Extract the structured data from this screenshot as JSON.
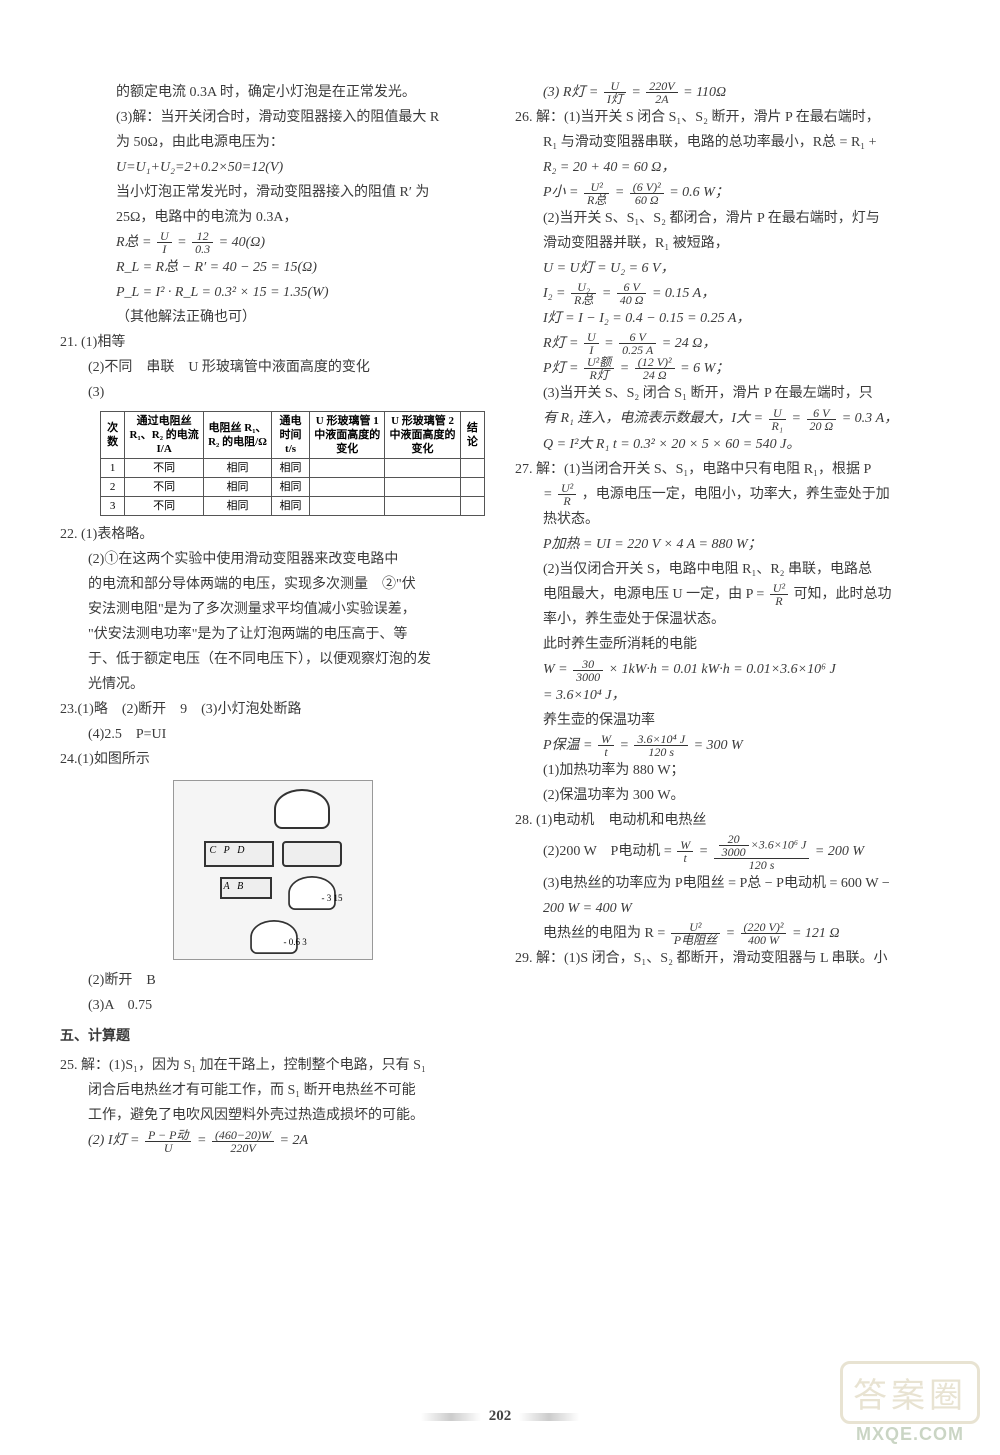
{
  "page_number": "202",
  "watermark": {
    "cn": "答案圈",
    "url": "MXQE.COM"
  },
  "left_col": {
    "l01": "的额定电流 0.3A 时，确定小灯泡是在正常发光。",
    "l02": "(3)解：当开关闭合时，滑动变阻器接入的阻值最大 R",
    "l03": "为 50Ω，由此电源电压为：",
    "l04": "U=U₁+U₂=2+0.2×50=12(V)",
    "l05": "当小灯泡正常发光时，滑动变阻器接入的阻值 R′ 为",
    "l06": "25Ω，电路中的电流为 0.3A，",
    "l07a": "R总 =",
    "l07_n": "U",
    "l07_d": "I",
    "l07b": " = ",
    "l07_n2": "12",
    "l07_d2": "0.3",
    "l07c": " = 40(Ω)",
    "l08": "R_L = R总 − R′ = 40 − 25 = 15(Ω)",
    "l09": "P_L = I² · R_L = 0.3² × 15 = 1.35(W)",
    "l10": "（其他解法正确也可）",
    "q21": "21. (1)相等",
    "q21b": "(2)不同　串联　U 形玻璃管中液面高度的变化",
    "q21c": "(3)",
    "table": {
      "headers": [
        "次数",
        "通过电阻丝 R₁、R₂ 的电流 I/A",
        "电阻丝 R₁、R₂ 的电阻/Ω",
        "通电时间 t/s",
        "U 形玻璃管 1 中液面高度的变化",
        "U 形玻璃管 2 中液面高度的变化",
        "结论"
      ],
      "rows": [
        [
          "1",
          "不同",
          "相同",
          "相同",
          "",
          "",
          ""
        ],
        [
          "2",
          "不同",
          "相同",
          "相同",
          "",
          "",
          ""
        ],
        [
          "3",
          "不同",
          "相同",
          "相同",
          "",
          "",
          ""
        ]
      ]
    },
    "q22a": "22. (1)表格略。",
    "q22b": "(2)①在这两个实验中使用滑动变阻器来改变电路中",
    "q22c": "的电流和部分导体两端的电压，实现多次测量　②\"伏",
    "q22d": "安法测电阻\"是为了多次测量求平均值减小实验误差，",
    "q22e": "\"伏安法测电功率\"是为了让灯泡两端的电压高于、等",
    "q22f": "于、低于额定电压（在不同电压下），以便观察灯泡的发",
    "q22g": "光情况。",
    "q23": "23.(1)略　(2)断开　9　(3)小灯泡处断路",
    "q23b": "(4)2.5　P=UI",
    "q24": "24.(1)如图所示",
    "q24b": "(2)断开　B",
    "q24c": "(3)A　0.75",
    "sec5": "五、计算题",
    "q25a": "25. 解：(1)S₁，因为 S₁ 加在干路上，控制整个电路，只有 S₁",
    "q25b": "闭合后电热丝才有可能工作，而 S₁ 断开电热丝不可能",
    "q25c": "工作，避免了电吹风因塑料外壳过热造成损坏的可能。",
    "q25d_a": "(2) I灯 = ",
    "q25d_n": "P − P动",
    "q25d_d": "U",
    "q25d_b": " = ",
    "q25d_n2": "(460−20)W",
    "q25d_d2": "220V",
    "q25d_c": " = 2A"
  },
  "right_col": {
    "r01a": "(3) R灯 = ",
    "r01_n": "U",
    "r01_d": "I灯",
    "r01b": " = ",
    "r01_n2": "220V",
    "r01_d2": "2A",
    "r01c": " = 110Ω",
    "q26a": "26. 解：(1)当开关 S 闭合 S₁、S₂ 断开，滑片 P 在最右端时，",
    "q26b": "R₁ 与滑动变阻器串联，电路的总功率最小，R总 = R₁ +",
    "q26c": "R₂ = 20 + 40 = 60 Ω，",
    "q26d_a": "P小 = ",
    "q26d_n": "U²",
    "q26d_d": "R总",
    "q26d_b": " = ",
    "q26d_n2": "(6 V)²",
    "q26d_d2": "60 Ω",
    "q26d_c": " = 0.6 W；",
    "q26e": "(2)当开关 S、S₁、S₂ 都闭合，滑片 P 在最右端时，灯与",
    "q26f": "滑动变阻器并联，R₁ 被短路，",
    "q26g": "U = U灯 = U₂ = 6 V，",
    "q26h_a": "I₂ = ",
    "q26h_n": "U₂",
    "q26h_d": "R总",
    "q26h_b": " = ",
    "q26h_n2": "6 V",
    "q26h_d2": "40 Ω",
    "q26h_c": " = 0.15 A，",
    "q26i": "I灯 = I − I₂ = 0.4 − 0.15 = 0.25 A，",
    "q26j_a": "R灯 = ",
    "q26j_n": "U",
    "q26j_d": "I",
    "q26j_b": " = ",
    "q26j_n2": "6 V",
    "q26j_d2": "0.25 A",
    "q26j_c": " = 24 Ω，",
    "q26k_a": "P灯 = ",
    "q26k_n": "U²额",
    "q26k_d": "R灯",
    "q26k_b": " = ",
    "q26k_n2": "(12 V)²",
    "q26k_d2": "24 Ω",
    "q26k_c": " = 6 W；",
    "q26l": "(3)当开关 S、S₂ 闭合 S₁ 断开，滑片 P 在最左端时，只",
    "q26m_a": "有 R₁ 连入，电流表示数最大，I大 = ",
    "q26m_n": "U",
    "q26m_d": "R₁",
    "q26m_b": " = ",
    "q26m_n2": "6 V",
    "q26m_d2": "20 Ω",
    "q26m_c": " = 0.3 A，",
    "q26n": "Q = I²大 R₁ t = 0.3² × 20 × 5 × 60 = 540 J。",
    "q27a": "27. 解：(1)当闭合开关 S、S₁，电路中只有电阻 R₁，根据 P",
    "q27b_a": "= ",
    "q27b_n": "U²",
    "q27b_d": "R",
    "q27b_b": "，电源电压一定，电阻小，功率大，养生壶处于加",
    "q27c": "热状态。",
    "q27d": "P加热 = UI = 220 V × 4 A = 880 W；",
    "q27e": "(2)当仅闭合开关 S，电路中电阻 R₁、R₂ 串联，电路总",
    "q27f_a": "电阻最大，电源电压 U 一定，由 P = ",
    "q27f_n": "U²",
    "q27f_d": "R",
    "q27f_b": " 可知，此时总功",
    "q27g": "率小，养生壶处于保温状态。",
    "q27h": "此时养生壶所消耗的电能",
    "q27i_a": "W = ",
    "q27i_n": "30",
    "q27i_d": "3000",
    "q27i_b": " × 1kW·h = 0.01 kW·h = 0.01×3.6×10⁶ J",
    "q27j": "= 3.6×10⁴ J，",
    "q27k": "养生壶的保温功率",
    "q27l_a": "P保温 = ",
    "q27l_n": "W",
    "q27l_d": "t",
    "q27l_b": " = ",
    "q27l_n2": "3.6×10⁴ J",
    "q27l_d2": "120 s",
    "q27l_c": " = 300 W",
    "q27m": "(1)加热功率为 880 W；",
    "q27n": "(2)保温功率为 300 W。",
    "q28a": "28. (1)电动机　电动机和电热丝",
    "q28b_a": "(2)200 W　P电动机 = ",
    "q28b_n": "W",
    "q28b_d": "t",
    "q28b_b": " = ",
    "q28b_nn": "20",
    "q28b_nd": "3000",
    "q28b_nx": "×3.6×10⁶ J",
    "q28b_d2": "120 s",
    "q28b_c": " = 200 W",
    "q28c": "(3)电热丝的功率应为 P电阻丝 = P总 − P电动机 = 600 W −",
    "q28d": "200 W = 400 W",
    "q28e_a": "电热丝的电阻为 R = ",
    "q28e_n": "U²",
    "q28e_d": "P电阻丝",
    "q28e_b": " = ",
    "q28e_n2": "(220 V)²",
    "q28e_d2": "400 W",
    "q28e_c": " = 121 Ω",
    "q29": "29. 解：(1)S 闭合，S₁、S₂ 都断开，滑动变阻器与 L 串联。小"
  }
}
